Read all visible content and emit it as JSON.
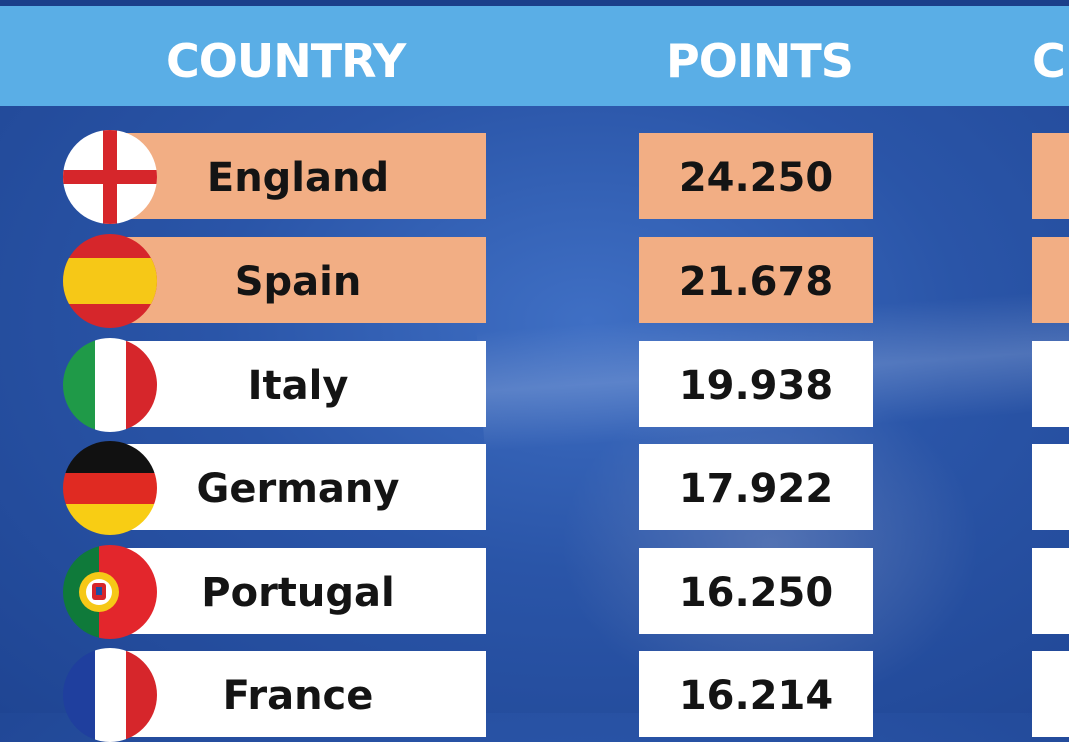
{
  "header": {
    "country": "COUNTRY",
    "points": "POINTS",
    "third": "C"
  },
  "rows": [
    {
      "country": "England",
      "points": "24.250",
      "flag": "england-flag-icon",
      "highlight": true
    },
    {
      "country": "Spain",
      "points": "21.678",
      "flag": "spain-flag-icon",
      "highlight": true
    },
    {
      "country": "Italy",
      "points": "19.938",
      "flag": "italy-flag-icon",
      "highlight": false
    },
    {
      "country": "Germany",
      "points": "17.922",
      "flag": "germany-flag-icon",
      "highlight": false
    },
    {
      "country": "Portugal",
      "points": "16.250",
      "flag": "portugal-flag-icon",
      "highlight": false
    },
    {
      "country": "France",
      "points": "16.214",
      "flag": "france-flag-icon",
      "highlight": false
    }
  ],
  "colors": {
    "header": "#5aaee6",
    "highlight": "#f2ae84",
    "row": "#ffffff",
    "background": "#2a55a8"
  }
}
